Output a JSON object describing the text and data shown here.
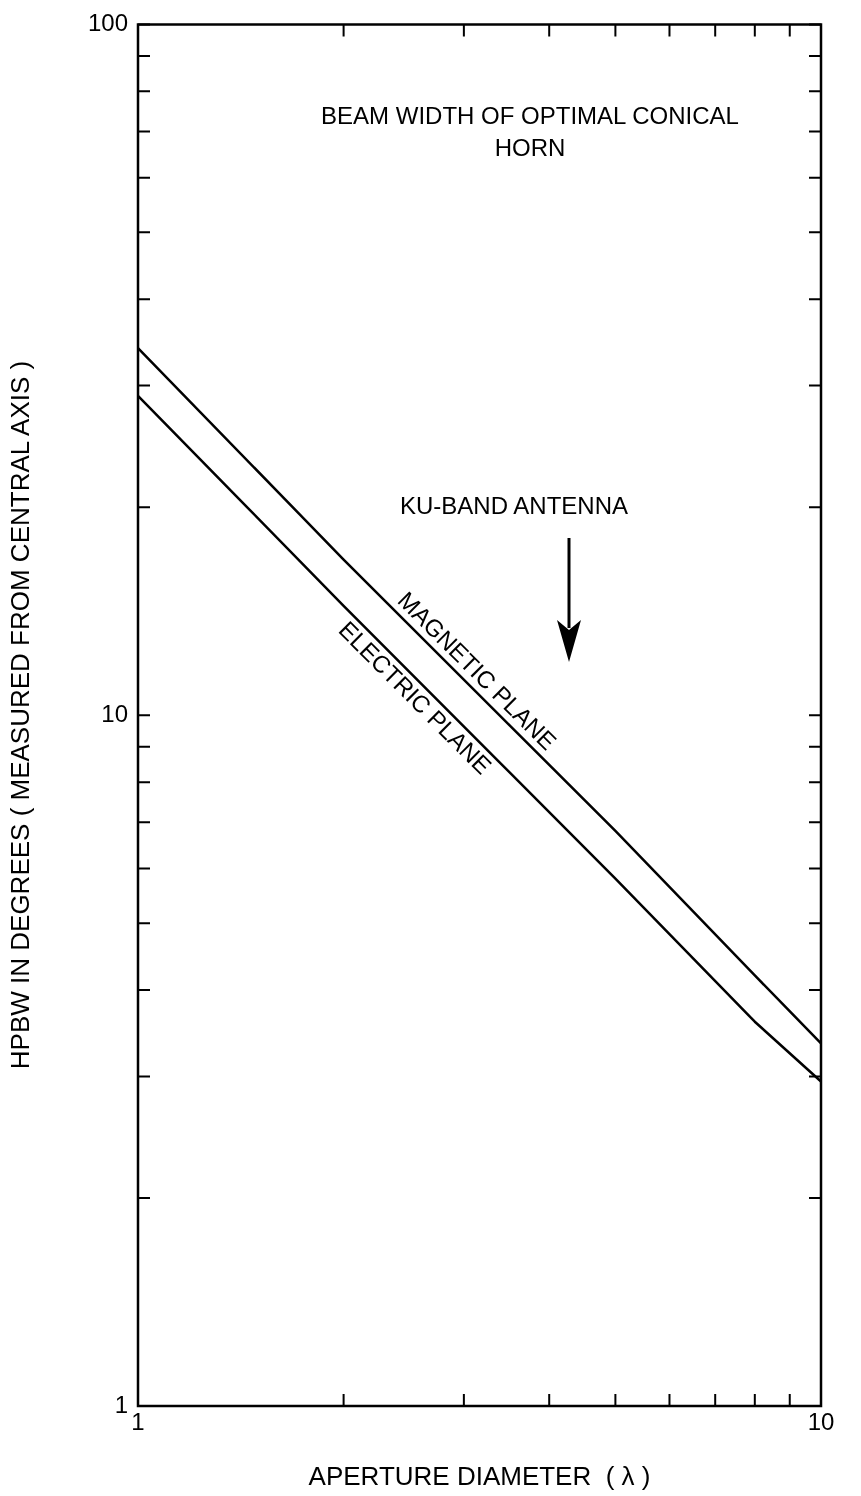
{
  "chart_data": {
    "type": "line",
    "title": "BEAM WIDTH OF OPTIMAL CONICAL HORN",
    "xlabel": "APERTURE DIAMETER  ( λ )",
    "ylabel": "HPBW IN DEGREES ( MEASURED FROM CENTRAL AXIS )",
    "x": [
      1,
      2,
      5,
      8,
      10
    ],
    "series": [
      {
        "name": "MAGNETIC PLANE",
        "color": "#000000",
        "values": [
          34,
          16.8,
          6.8,
          4.2,
          3.35
        ]
      },
      {
        "name": "ELECTRIC PLANE",
        "color": "#000000",
        "values": [
          29,
          14.4,
          5.8,
          3.6,
          2.95
        ]
      }
    ],
    "log": "xy",
    "xlim": [
      1,
      10
    ],
    "ylim": [
      1,
      100
    ],
    "xticks": [
      1,
      {
        "value": 2,
        "label": null
      },
      {
        "value": 3,
        "label": null
      },
      {
        "value": 4,
        "label": null
      },
      {
        "value": 5,
        "label": null
      },
      {
        "value": 6,
        "label": null
      },
      {
        "value": 7,
        "label": null
      },
      {
        "value": 8,
        "label": null
      },
      {
        "value": 9,
        "label": null
      },
      10
    ],
    "yticks": [
      1,
      {
        "value": 2,
        "label": null
      },
      {
        "value": 3,
        "label": null
      },
      {
        "value": 4,
        "label": null
      },
      {
        "value": 5,
        "label": null
      },
      {
        "value": 6,
        "label": null
      },
      {
        "value": 7,
        "label": null
      },
      {
        "value": 8,
        "label": null
      },
      {
        "value": 9,
        "label": null
      },
      10,
      {
        "value": 20,
        "label": null
      },
      {
        "value": 30,
        "label": null
      },
      {
        "value": 40,
        "label": null
      },
      {
        "value": 50,
        "label": null
      },
      {
        "value": 60,
        "label": null
      },
      {
        "value": 70,
        "label": null
      },
      {
        "value": 80,
        "label": null
      },
      {
        "value": 90,
        "label": null
      },
      100
    ],
    "annotations": [
      "KU-BAND ANTENNA"
    ],
    "grid": false,
    "legend": false,
    "marker": "none",
    "line_style": "solid"
  }
}
